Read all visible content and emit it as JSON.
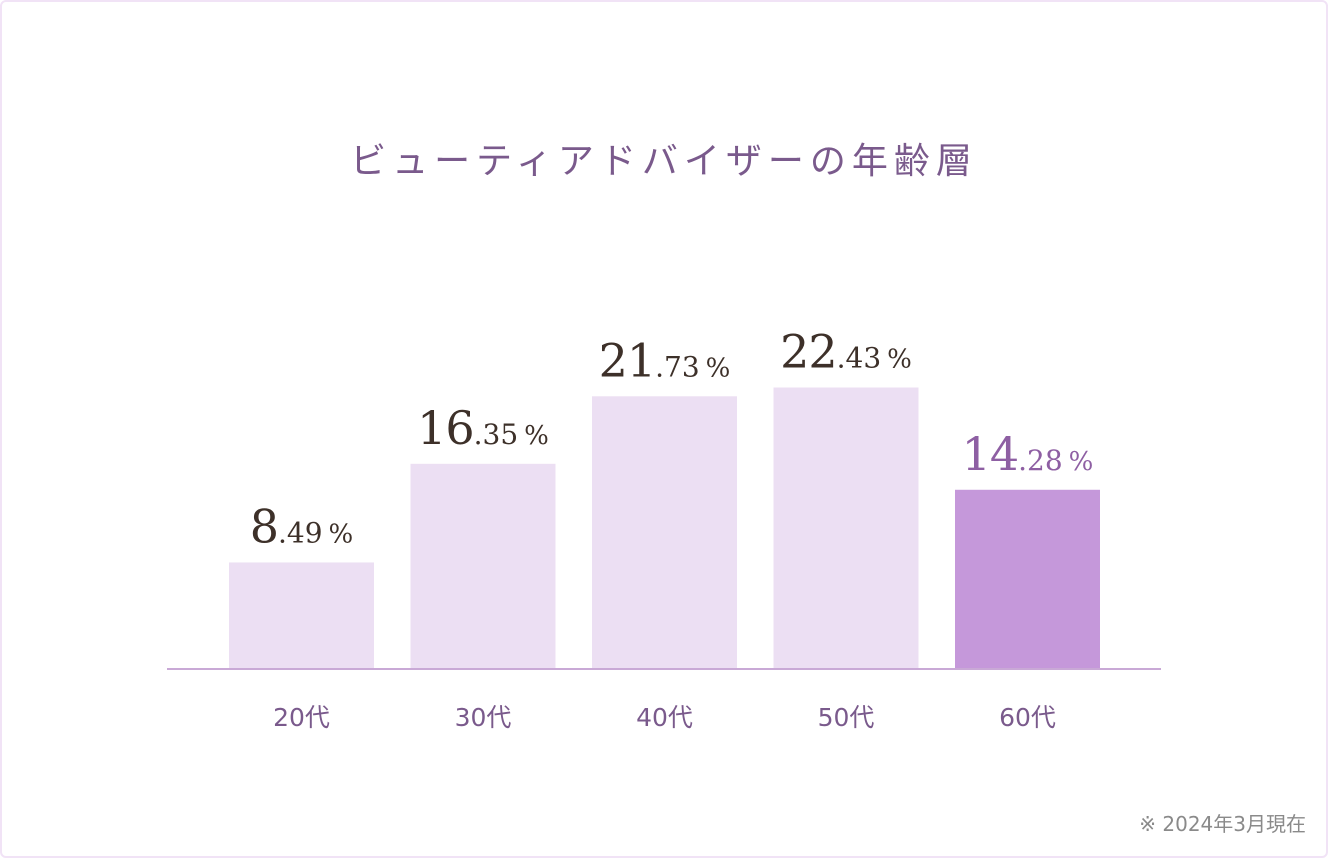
{
  "chart_data": {
    "type": "bar",
    "title": "ビューティアドバイザーの年齢層",
    "categories": [
      "20代",
      "30代",
      "40代",
      "50代",
      "60代"
    ],
    "values": [
      8.49,
      16.35,
      21.73,
      22.43,
      14.28
    ],
    "unit": "%",
    "highlight_index": 4,
    "ylim": [
      0,
      30
    ],
    "grid": false,
    "legend": "none",
    "colors": {
      "bar": "#ecdff3",
      "bar_highlight": "#c598da",
      "axis": "#c9a9d6",
      "label": "#3d3029",
      "label_highlight": "#8e5fa3",
      "tick": "#7a5a8c",
      "title": "#7a5a8c"
    }
  },
  "footnote": "※ 2024年3月現在"
}
